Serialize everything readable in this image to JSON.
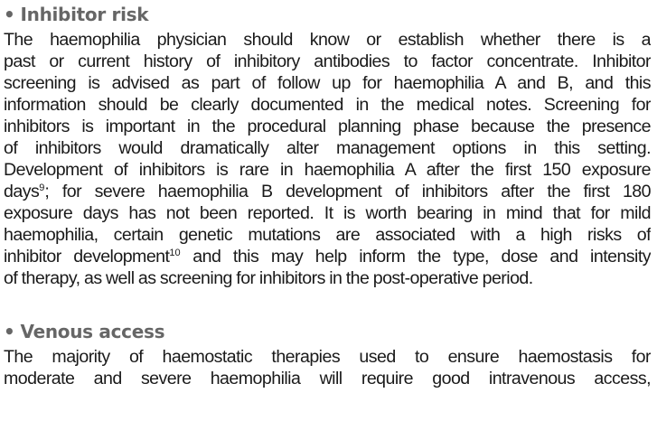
{
  "sections": [
    {
      "bullet": "•",
      "heading": "Inhibitor risk",
      "lines": [
        {
          "text": "The haemophilia physician should know or establish whether there is a",
          "justify": true
        },
        {
          "text": "past or current history of inhibitory antibodies to factor concentrate. Inhibitor",
          "justify": true
        },
        {
          "text": "screening is advised as part of follow up for haemophilia A and B, and this",
          "justify": true
        },
        {
          "text": "information should be clearly documented in the medical notes. Screening for",
          "justify": true
        },
        {
          "text": "inhibitors is important in the procedural planning phase because the presence",
          "justify": true
        },
        {
          "text": "of inhibitors would dramatically alter management options in this setting.",
          "justify": true
        },
        {
          "text": "Development of inhibitors is rare in haemophilia A after the first 150 exposure",
          "justify": true
        },
        {
          "pre": "days",
          "sup": "9",
          "post": "; for severe haemophilia B development of inhibitors after the first 180",
          "justify": true
        },
        {
          "text": "exposure days has not been reported. It is worth bearing in mind that for mild",
          "justify": true
        },
        {
          "text": "haemophilia, certain genetic mutations are associated with a high risks of",
          "justify": true
        },
        {
          "pre": "inhibitor development",
          "sup": "10",
          "post": " and this may help inform the type, dose and intensity",
          "justify": true
        },
        {
          "text": "of therapy, as well as screening for inhibitors in the post-operative period.",
          "justify": false
        }
      ]
    },
    {
      "bullet": "•",
      "heading": "Venous access",
      "lines": [
        {
          "text": "The majority of haemostatic therapies used to ensure haemostasis for",
          "justify": true
        },
        {
          "text": "moderate and severe haemophilia will require good intravenous access,",
          "justify": true
        }
      ]
    }
  ]
}
